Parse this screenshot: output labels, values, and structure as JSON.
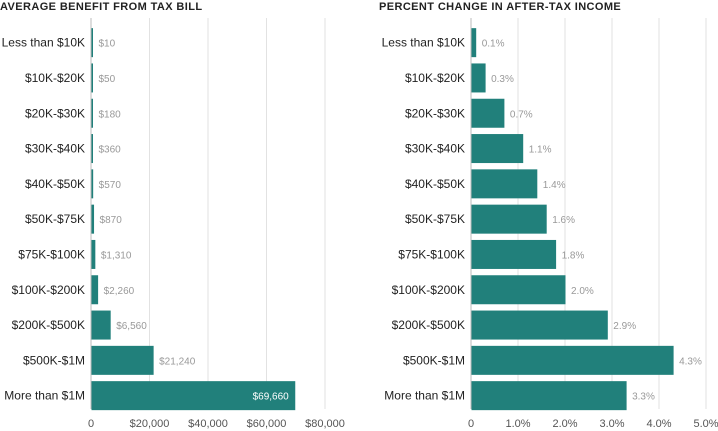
{
  "colors": {
    "bar": "#21807b",
    "grid": "#e2e2e2",
    "axis": "#bbbbbb"
  },
  "chart_data": [
    {
      "type": "bar",
      "orientation": "horizontal",
      "title": "AVERAGE BENEFIT FROM TAX BILL",
      "categories": [
        "Less than $10K",
        "$10K-$20K",
        "$20K-$30K",
        "$30K-$40K",
        "$40K-$50K",
        "$50K-$75K",
        "$75K-$100K",
        "$100K-$200K",
        "$200K-$500K",
        "$500K-$1M",
        "More than $1M"
      ],
      "values": [
        10,
        50,
        180,
        360,
        570,
        870,
        1310,
        2260,
        6560,
        21240,
        69660
      ],
      "value_labels": [
        "$10",
        "$50",
        "$180",
        "$360",
        "$570",
        "$870",
        "$1,310",
        "$2,260",
        "$6,560",
        "$21,240",
        "$69,660"
      ],
      "xlim": [
        0,
        80000
      ],
      "xticks": [
        0,
        20000,
        40000,
        60000,
        80000
      ],
      "xtick_labels": [
        "0",
        "$20,000",
        "$40,000",
        "$60,000",
        "$80,000"
      ],
      "grid": true
    },
    {
      "type": "bar",
      "orientation": "horizontal",
      "title": "PERCENT CHANGE IN AFTER-TAX INCOME",
      "categories": [
        "Less than $10K",
        "$10K-$20K",
        "$20K-$30K",
        "$30K-$40K",
        "$40K-$50K",
        "$50K-$75K",
        "$75K-$100K",
        "$100K-$200K",
        "$200K-$500K",
        "$500K-$1M",
        "More than $1M"
      ],
      "values": [
        0.1,
        0.3,
        0.7,
        1.1,
        1.4,
        1.6,
        1.8,
        2.0,
        2.9,
        4.3,
        3.3
      ],
      "value_labels": [
        "0.1%",
        "0.3%",
        "0.7%",
        "1.1%",
        "1.4%",
        "1.6%",
        "1.8%",
        "2.0%",
        "2.9%",
        "4.3%",
        "3.3%"
      ],
      "xlim": [
        0,
        5
      ],
      "xticks": [
        0,
        1,
        2,
        3,
        4,
        5
      ],
      "xtick_labels": [
        "0",
        "1.0%",
        "2.0%",
        "3.0%",
        "4.0%",
        "5.0%"
      ],
      "grid": true
    }
  ]
}
